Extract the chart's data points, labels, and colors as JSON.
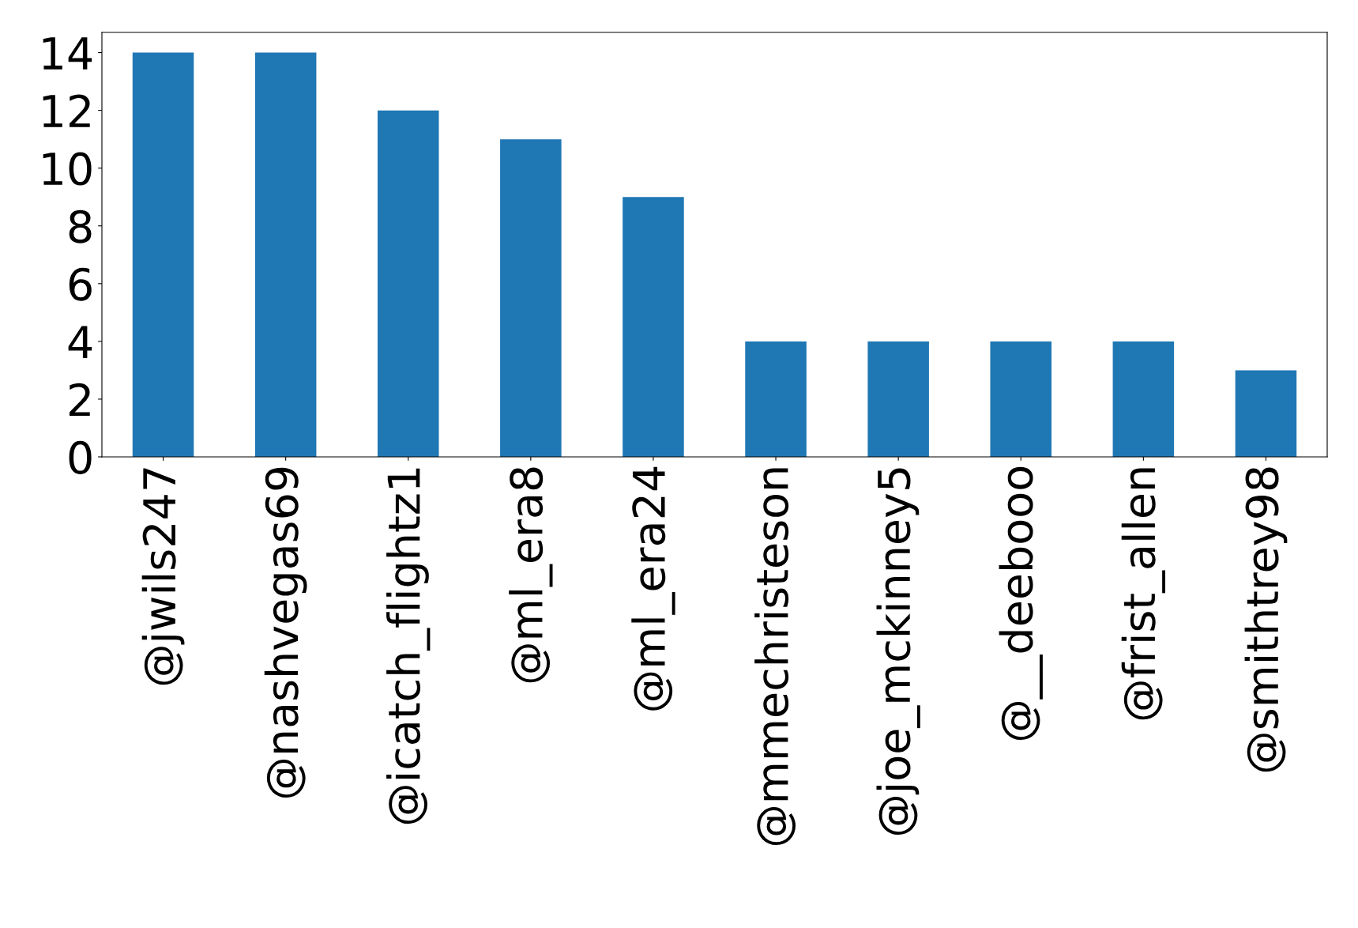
{
  "chart_data": {
    "type": "bar",
    "categories": [
      "@jwils247",
      "@nashvegas69",
      "@icatch_flightz1",
      "@ml_era8",
      "@ml_era24",
      "@mmechristeson",
      "@joe_mckinney5",
      "@__deebooo",
      "@frist_allen",
      "@smithtrey98"
    ],
    "values": [
      14,
      14,
      12,
      11,
      9,
      4,
      4,
      4,
      4,
      3
    ],
    "color": "#1f77b4",
    "ylim": [
      0,
      14.7
    ],
    "yticks": [
      0,
      2,
      4,
      6,
      8,
      10,
      12,
      14
    ],
    "grid": false,
    "legend": false
  }
}
